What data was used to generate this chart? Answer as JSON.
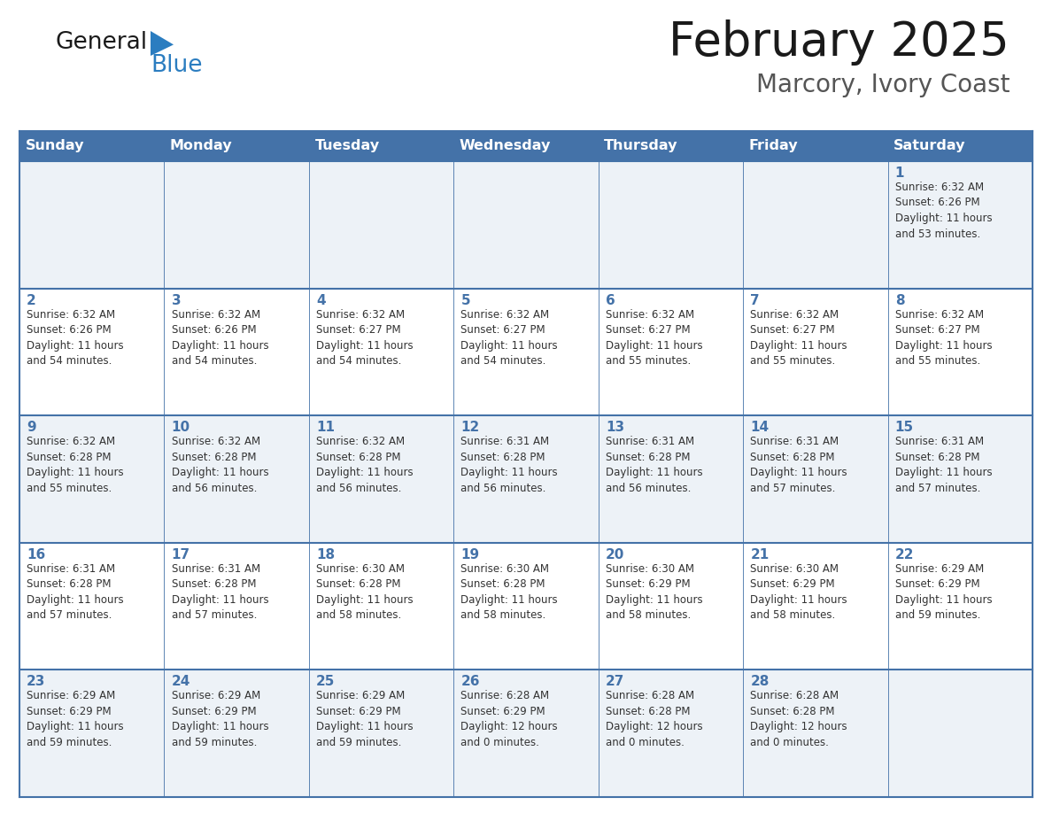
{
  "title": "February 2025",
  "subtitle": "Marcory, Ivory Coast",
  "header_bg": "#4472a8",
  "header_text_color": "#ffffff",
  "day_names": [
    "Sunday",
    "Monday",
    "Tuesday",
    "Wednesday",
    "Thursday",
    "Friday",
    "Saturday"
  ],
  "row_bg_even": "#edf2f7",
  "row_bg_odd": "#ffffff",
  "cell_border_color": "#4472a8",
  "day_number_color": "#4472a8",
  "text_color": "#333333",
  "logo_general_color": "#1a1a1a",
  "logo_blue_color": "#2b7dc0",
  "logo_triangle_color": "#2b7dc0",
  "title_color": "#1a1a1a",
  "subtitle_color": "#555555",
  "calendar": [
    [
      null,
      null,
      null,
      null,
      null,
      null,
      {
        "day": 1,
        "sunrise": "6:32 AM",
        "sunset": "6:26 PM",
        "daylight": "11 hours\nand 53 minutes."
      }
    ],
    [
      {
        "day": 2,
        "sunrise": "6:32 AM",
        "sunset": "6:26 PM",
        "daylight": "11 hours\nand 54 minutes."
      },
      {
        "day": 3,
        "sunrise": "6:32 AM",
        "sunset": "6:26 PM",
        "daylight": "11 hours\nand 54 minutes."
      },
      {
        "day": 4,
        "sunrise": "6:32 AM",
        "sunset": "6:27 PM",
        "daylight": "11 hours\nand 54 minutes."
      },
      {
        "day": 5,
        "sunrise": "6:32 AM",
        "sunset": "6:27 PM",
        "daylight": "11 hours\nand 54 minutes."
      },
      {
        "day": 6,
        "sunrise": "6:32 AM",
        "sunset": "6:27 PM",
        "daylight": "11 hours\nand 55 minutes."
      },
      {
        "day": 7,
        "sunrise": "6:32 AM",
        "sunset": "6:27 PM",
        "daylight": "11 hours\nand 55 minutes."
      },
      {
        "day": 8,
        "sunrise": "6:32 AM",
        "sunset": "6:27 PM",
        "daylight": "11 hours\nand 55 minutes."
      }
    ],
    [
      {
        "day": 9,
        "sunrise": "6:32 AM",
        "sunset": "6:28 PM",
        "daylight": "11 hours\nand 55 minutes."
      },
      {
        "day": 10,
        "sunrise": "6:32 AM",
        "sunset": "6:28 PM",
        "daylight": "11 hours\nand 56 minutes."
      },
      {
        "day": 11,
        "sunrise": "6:32 AM",
        "sunset": "6:28 PM",
        "daylight": "11 hours\nand 56 minutes."
      },
      {
        "day": 12,
        "sunrise": "6:31 AM",
        "sunset": "6:28 PM",
        "daylight": "11 hours\nand 56 minutes."
      },
      {
        "day": 13,
        "sunrise": "6:31 AM",
        "sunset": "6:28 PM",
        "daylight": "11 hours\nand 56 minutes."
      },
      {
        "day": 14,
        "sunrise": "6:31 AM",
        "sunset": "6:28 PM",
        "daylight": "11 hours\nand 57 minutes."
      },
      {
        "day": 15,
        "sunrise": "6:31 AM",
        "sunset": "6:28 PM",
        "daylight": "11 hours\nand 57 minutes."
      }
    ],
    [
      {
        "day": 16,
        "sunrise": "6:31 AM",
        "sunset": "6:28 PM",
        "daylight": "11 hours\nand 57 minutes."
      },
      {
        "day": 17,
        "sunrise": "6:31 AM",
        "sunset": "6:28 PM",
        "daylight": "11 hours\nand 57 minutes."
      },
      {
        "day": 18,
        "sunrise": "6:30 AM",
        "sunset": "6:28 PM",
        "daylight": "11 hours\nand 58 minutes."
      },
      {
        "day": 19,
        "sunrise": "6:30 AM",
        "sunset": "6:28 PM",
        "daylight": "11 hours\nand 58 minutes."
      },
      {
        "day": 20,
        "sunrise": "6:30 AM",
        "sunset": "6:29 PM",
        "daylight": "11 hours\nand 58 minutes."
      },
      {
        "day": 21,
        "sunrise": "6:30 AM",
        "sunset": "6:29 PM",
        "daylight": "11 hours\nand 58 minutes."
      },
      {
        "day": 22,
        "sunrise": "6:29 AM",
        "sunset": "6:29 PM",
        "daylight": "11 hours\nand 59 minutes."
      }
    ],
    [
      {
        "day": 23,
        "sunrise": "6:29 AM",
        "sunset": "6:29 PM",
        "daylight": "11 hours\nand 59 minutes."
      },
      {
        "day": 24,
        "sunrise": "6:29 AM",
        "sunset": "6:29 PM",
        "daylight": "11 hours\nand 59 minutes."
      },
      {
        "day": 25,
        "sunrise": "6:29 AM",
        "sunset": "6:29 PM",
        "daylight": "11 hours\nand 59 minutes."
      },
      {
        "day": 26,
        "sunrise": "6:28 AM",
        "sunset": "6:29 PM",
        "daylight": "12 hours\nand 0 minutes."
      },
      {
        "day": 27,
        "sunrise": "6:28 AM",
        "sunset": "6:28 PM",
        "daylight": "12 hours\nand 0 minutes."
      },
      {
        "day": 28,
        "sunrise": "6:28 AM",
        "sunset": "6:28 PM",
        "daylight": "12 hours\nand 0 minutes."
      },
      null
    ]
  ]
}
